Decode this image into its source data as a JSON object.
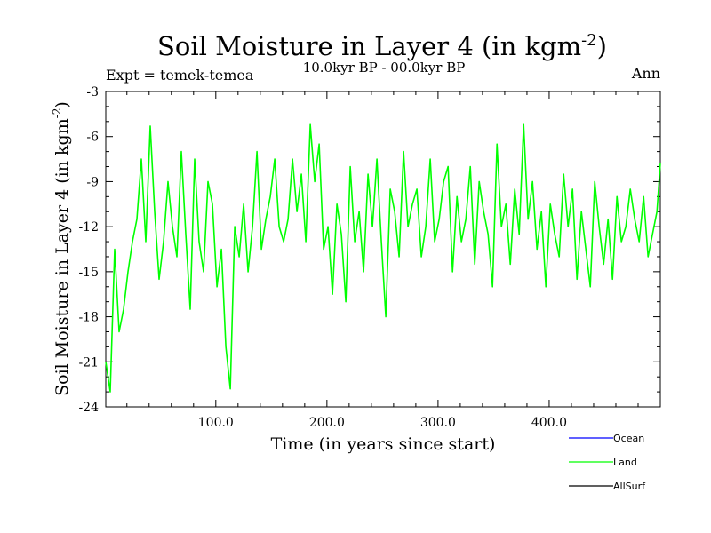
{
  "header": {
    "title_main": "Soil Moisture in Layer 4 (in kgm",
    "title_sup": "-2",
    "title_close": ")",
    "subtitle": "10.0kyr BP - 00.0kyr BP",
    "expt": "Expt = temek-temea",
    "period": "Ann"
  },
  "chart_data": {
    "type": "line",
    "title": "Soil Moisture in Layer 4 (in kgm-2)",
    "subtitle": "10.0kyr BP - 00.0kyr BP",
    "xlabel": "Time (in years since start)",
    "ylabel": "Soil Moisture in Layer 4 (in kgm-2)",
    "ylabel_main": "Soil Moisture in Layer 4 (in kgm",
    "ylabel_sup": "-2",
    "ylabel_close": ")",
    "xlim": [
      1,
      500
    ],
    "ylim": [
      -24,
      -3
    ],
    "x_ticks": [
      100,
      200,
      300,
      400
    ],
    "x_tick_labels": [
      "100.0",
      "200.0",
      "300.0",
      "400.0"
    ],
    "y_ticks": [
      -3,
      -6,
      -9,
      -12,
      -15,
      -18,
      -21,
      -24
    ],
    "y_tick_labels": [
      "-3",
      "-6",
      "-9",
      "-12",
      "-15",
      "-18",
      "-21",
      "-24"
    ],
    "legend": [
      {
        "name": "Ocean",
        "color": "#0000ff"
      },
      {
        "name": "Land",
        "color": "#00ff00"
      },
      {
        "name": "AllSurf",
        "color": "#000000"
      }
    ],
    "series": [
      {
        "name": "Land",
        "color": "#00ff00",
        "x": [
          1,
          5,
          9,
          13,
          17,
          21,
          25,
          29,
          33,
          37,
          41,
          45,
          49,
          53,
          57,
          61,
          65,
          69,
          73,
          77,
          81,
          85,
          89,
          93,
          97,
          101,
          105,
          109,
          113,
          117,
          121,
          125,
          129,
          133,
          137,
          141,
          145,
          149,
          153,
          157,
          161,
          165,
          169,
          173,
          177,
          181,
          185,
          189,
          193,
          197,
          201,
          205,
          209,
          213,
          217,
          221,
          225,
          229,
          233,
          237,
          241,
          245,
          249,
          253,
          257,
          261,
          265,
          269,
          273,
          277,
          281,
          285,
          289,
          293,
          297,
          301,
          305,
          309,
          313,
          317,
          321,
          325,
          329,
          333,
          337,
          341,
          345,
          349,
          353,
          357,
          361,
          365,
          369,
          373,
          377,
          381,
          385,
          389,
          393,
          397,
          401,
          405,
          409,
          413,
          417,
          421,
          425,
          429,
          433,
          437,
          441,
          445,
          449,
          453,
          457,
          461,
          465,
          469,
          473,
          477,
          481,
          485,
          489,
          493,
          497,
          500
        ],
        "values": [
          -21.0,
          -23.0,
          -13.5,
          -19.0,
          -17.5,
          -15.0,
          -13.0,
          -11.5,
          -7.5,
          -13.0,
          -5.3,
          -11.0,
          -15.5,
          -13.0,
          -9.0,
          -12.0,
          -14.0,
          -7.0,
          -12.5,
          -17.5,
          -7.5,
          -13.0,
          -15.0,
          -9.0,
          -10.5,
          -16.0,
          -13.5,
          -20.0,
          -22.8,
          -12.0,
          -14.0,
          -10.5,
          -15.0,
          -12.0,
          -7.0,
          -13.5,
          -11.5,
          -10.0,
          -7.5,
          -12.0,
          -13.0,
          -11.5,
          -7.5,
          -11.0,
          -8.5,
          -13.0,
          -5.2,
          -9.0,
          -6.5,
          -13.5,
          -12.0,
          -16.5,
          -10.5,
          -12.5,
          -17.0,
          -8.0,
          -13.0,
          -11.0,
          -15.0,
          -8.5,
          -12.0,
          -7.5,
          -13.0,
          -18.0,
          -9.5,
          -11.0,
          -14.0,
          -7.0,
          -12.0,
          -10.5,
          -9.5,
          -14.0,
          -12.0,
          -7.5,
          -13.0,
          -11.5,
          -9.0,
          -8.0,
          -15.0,
          -10.0,
          -13.0,
          -11.5,
          -8.0,
          -14.5,
          -9.0,
          -11.0,
          -12.5,
          -16.0,
          -6.5,
          -12.0,
          -10.5,
          -14.5,
          -9.5,
          -12.5,
          -5.2,
          -11.5,
          -9.0,
          -13.5,
          -11.0,
          -16.0,
          -10.5,
          -12.5,
          -14.0,
          -8.5,
          -12.0,
          -9.5,
          -15.5,
          -11.0,
          -13.5,
          -16.0,
          -9.0,
          -12.0,
          -14.5,
          -11.5,
          -15.5,
          -10.0,
          -13.0,
          -12.0,
          -9.5,
          -11.5,
          -13.0,
          -10.0,
          -14.0,
          -12.5,
          -11.0,
          -7.8
        ]
      }
    ]
  }
}
